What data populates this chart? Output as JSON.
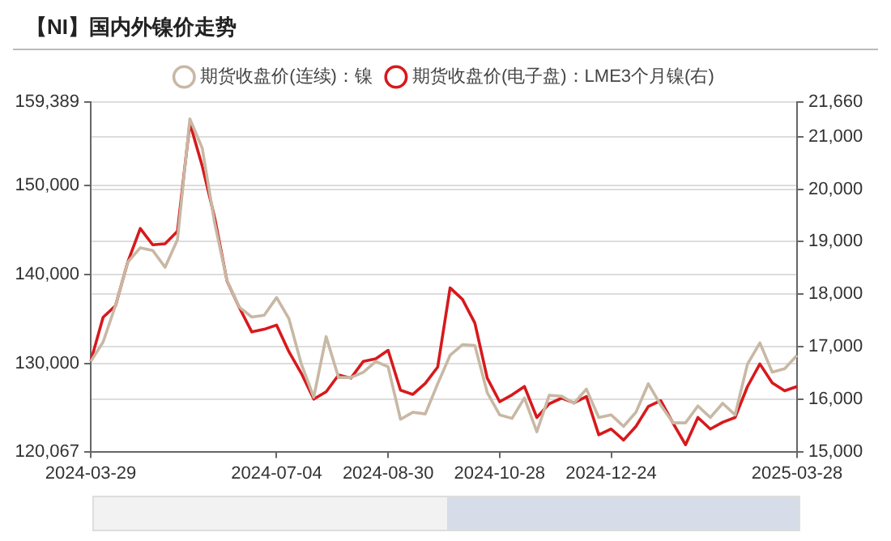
{
  "chart_data": {
    "type": "line",
    "title": "【NI】国内外镍价走势",
    "categories": [
      "2024-03-29",
      null,
      null,
      null,
      null,
      null,
      null,
      null,
      null,
      null,
      null,
      null,
      null,
      null,
      null,
      "2024-07-04",
      null,
      null,
      null,
      null,
      null,
      null,
      null,
      null,
      "2024-08-30",
      null,
      null,
      null,
      null,
      null,
      null,
      null,
      null,
      "2024-10-28",
      null,
      null,
      null,
      null,
      null,
      null,
      null,
      null,
      "2024-12-24",
      null,
      null,
      null,
      null,
      null,
      null,
      null,
      null,
      null,
      null,
      null,
      null,
      null,
      null,
      "2025-03-28"
    ],
    "series": [
      {
        "name": "期货收盘价(连续)：镍",
        "color": "#c8b8a4",
        "values": [
          130200,
          132400,
          136500,
          141400,
          143000,
          142700,
          140800,
          143900,
          157500,
          154200,
          145800,
          139300,
          136300,
          135200,
          135400,
          137400,
          135000,
          129900,
          126200,
          133000,
          128400,
          128400,
          129000,
          130200,
          129600,
          123700,
          124500,
          124300,
          127700,
          130900,
          132100,
          132000,
          126700,
          124200,
          123800,
          126100,
          122300,
          126400,
          126300,
          125500,
          127100,
          123900,
          124200,
          122900,
          124500,
          127700,
          125300,
          123300,
          123300,
          125200,
          123900,
          125500,
          124200,
          129900,
          132300,
          129000,
          129400,
          130900
        ]
      },
      {
        "name": "期货收盘价(电子盘)：LME3个月镍(右)",
        "color": "#d7191c",
        "axis": "y2",
        "values": [
          16720,
          17560,
          17780,
          18620,
          19250,
          18940,
          18960,
          19200,
          21260,
          20440,
          19460,
          18250,
          17740,
          17280,
          17330,
          17410,
          16900,
          16490,
          16000,
          16140,
          16460,
          16400,
          16720,
          16770,
          16930,
          16170,
          16090,
          16300,
          16610,
          18120,
          17900,
          17450,
          16400,
          15950,
          16080,
          16240,
          15650,
          15910,
          16020,
          15930,
          16050,
          15320,
          15430,
          15220,
          15480,
          15860,
          15970,
          15540,
          15130,
          15650,
          15430,
          15560,
          15650,
          16240,
          16670,
          16310,
          16160,
          16240
        ]
      }
    ],
    "ylim": [
      120067,
      159389
    ],
    "yticks": [
      {
        "value": 120067,
        "label": "120,067"
      },
      {
        "value": 130000,
        "label": "130,000"
      },
      {
        "value": 140000,
        "label": "140,000"
      },
      {
        "value": 150000,
        "label": "150,000"
      },
      {
        "value": 159389,
        "label": "159,389"
      }
    ],
    "y2lim": [
      15000,
      21660
    ],
    "y2ticks": [
      {
        "value": 15000,
        "label": "15,000"
      },
      {
        "value": 16000,
        "label": "16,000"
      },
      {
        "value": 17000,
        "label": "17,000"
      },
      {
        "value": 18000,
        "label": "18,000"
      },
      {
        "value": 19000,
        "label": "19,000"
      },
      {
        "value": 20000,
        "label": "20,000"
      },
      {
        "value": 21000,
        "label": "21,000"
      },
      {
        "value": 21660,
        "label": "21,660"
      }
    ],
    "grid": "y",
    "legend": "top",
    "marker": "none",
    "line_style": "solid"
  }
}
